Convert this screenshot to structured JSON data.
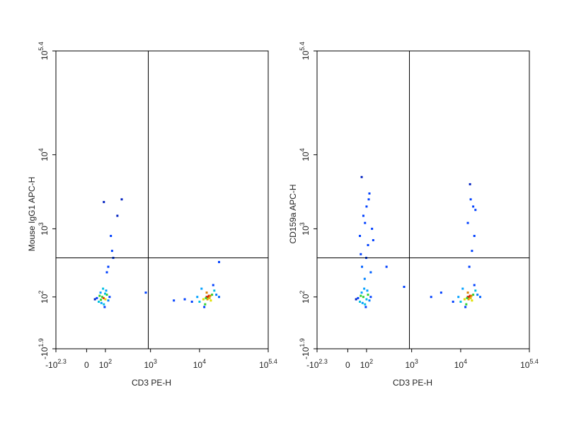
{
  "chart_data": [
    {
      "type": "scatter",
      "x_label": "CD3 PE-H",
      "y_label": "Mouse IgG1 APC-H",
      "xlim": [
        -199.5,
        251189
      ],
      "ylim": [
        -79.4,
        251189
      ],
      "xticks": [
        {
          "value": -199.5,
          "label": "-10",
          "sup": "2.3"
        },
        0,
        {
          "value": 100,
          "label": "10",
          "sup": "2"
        },
        {
          "value": 1000,
          "label": "10",
          "sup": "3"
        },
        {
          "value": 10000,
          "label": "10",
          "sup": "4"
        },
        {
          "value": 251189,
          "label": "10",
          "sup": "5.4"
        }
      ],
      "yticks": [
        {
          "value": -79.4,
          "label": "-10",
          "sup": "1.9"
        },
        {
          "value": 100,
          "label": "10",
          "sup": "2"
        },
        {
          "value": 1000,
          "label": "10",
          "sup": "3"
        },
        {
          "value": 10000,
          "label": "10",
          "sup": "4"
        },
        {
          "value": 251189,
          "label": "10",
          "sup": "5.4"
        }
      ],
      "quadrant": {
        "x": 900,
        "y": 400
      },
      "x": [
        60,
        80,
        100,
        70,
        90,
        110,
        50,
        120,
        85,
        95,
        75,
        65,
        105,
        130,
        40,
        88,
        72,
        98,
        12000,
        15000,
        18000,
        10000,
        14000,
        16000,
        20000,
        13000,
        17000,
        9000,
        22000,
        11000,
        15500,
        14500,
        7000,
        25000,
        19000,
        12500,
        14000,
        16500,
        13500,
        120,
        150,
        200,
        250,
        90,
        140,
        5000,
        3000,
        800,
        25000,
        160,
        110
      ],
      "y": [
        80,
        100,
        90,
        120,
        70,
        110,
        95,
        85,
        140,
        60,
        75,
        105,
        130,
        100,
        90,
        95,
        88,
        115,
        90,
        100,
        110,
        80,
        120,
        95,
        130,
        70,
        85,
        100,
        110,
        140,
        105,
        90,
        80,
        100,
        160,
        60,
        100,
        105,
        95,
        300,
        500,
        1500,
        2500,
        2300,
        800,
        90,
        85,
        120,
        350,
        400,
        250
      ],
      "colors": [
        "#00c0e0",
        "#30d030",
        "#e0e000",
        "#00a0ff",
        "#00c0e0",
        "#30d030",
        "#0040ff",
        "#0080ff",
        "#00c0e0",
        "#0040ff",
        "#00a0ff",
        "#30d030",
        "#00a0ff",
        "#0040ff",
        "#0020c0",
        "#e04000",
        "#30d030",
        "#00c0e0",
        "#e0e000",
        "#e03000",
        "#30d030",
        "#00c0e0",
        "#e08000",
        "#e0c000",
        "#00c0e0",
        "#30d030",
        "#e0e000",
        "#00a0ff",
        "#0080ff",
        "#00a0ff",
        "#e02000",
        "#e0a000",
        "#0040ff",
        "#0060ff",
        "#0040ff",
        "#0040ff",
        "#c02000",
        "#e08000",
        "#30d030",
        "#0040ff",
        "#0040ff",
        "#0020c0",
        "#0020c0",
        "#0020c0",
        "#0040ff",
        "#0040ff",
        "#0040ff",
        "#0040ff",
        "#0040ff",
        "#0040ff",
        "#0040ff"
      ]
    },
    {
      "type": "scatter",
      "x_label": "CD3 PE-H",
      "y_label": "CD159a APC-H",
      "xlim": [
        -199.5,
        251189
      ],
      "ylim": [
        -79.4,
        251189
      ],
      "xticks": [
        {
          "value": -199.5,
          "label": "-10",
          "sup": "2.3"
        },
        0,
        {
          "value": 100,
          "label": "10",
          "sup": "2"
        },
        {
          "value": 1000,
          "label": "10",
          "sup": "3"
        },
        {
          "value": 10000,
          "label": "10",
          "sup": "4"
        },
        {
          "value": 251189,
          "label": "10",
          "sup": "5.4"
        }
      ],
      "yticks": [
        {
          "value": -79.4,
          "label": "-10",
          "sup": "1.9"
        },
        {
          "value": 100,
          "label": "10",
          "sup": "2"
        },
        {
          "value": 1000,
          "label": "10",
          "sup": "3"
        },
        {
          "value": 10000,
          "label": "10",
          "sup": "4"
        },
        {
          "value": 251189,
          "label": "10",
          "sup": "5.4"
        }
      ],
      "quadrant": {
        "x": 900,
        "y": 400
      },
      "x": [
        60,
        80,
        100,
        70,
        90,
        110,
        50,
        120,
        85,
        95,
        75,
        65,
        105,
        130,
        40,
        88,
        72,
        98,
        110,
        60,
        140,
        80,
        100,
        120,
        70,
        150,
        90,
        130,
        65,
        115,
        12000,
        15000,
        18000,
        10000,
        14000,
        16000,
        20000,
        13000,
        17000,
        9000,
        22000,
        11000,
        15500,
        14500,
        7000,
        25000,
        19000,
        12500,
        14000,
        16500,
        13500,
        15000,
        17000,
        19000,
        14000,
        18000,
        16000,
        20000,
        15500,
        300,
        700,
        4000,
        2500
      ],
      "y": [
        80,
        100,
        90,
        120,
        70,
        110,
        95,
        85,
        140,
        60,
        75,
        105,
        130,
        100,
        90,
        200,
        300,
        400,
        600,
        800,
        1000,
        1500,
        2000,
        3000,
        5000,
        700,
        1200,
        250,
        450,
        2500,
        90,
        100,
        110,
        80,
        120,
        95,
        130,
        70,
        85,
        100,
        110,
        140,
        105,
        90,
        80,
        100,
        160,
        60,
        100,
        105,
        95,
        300,
        500,
        800,
        1200,
        2000,
        2500,
        1800,
        4000,
        300,
        150,
        120,
        100
      ],
      "colors": [
        "#00c0e0",
        "#30d030",
        "#00c0e0",
        "#00a0ff",
        "#00c0e0",
        "#30d030",
        "#0040ff",
        "#0080ff",
        "#00a0ff",
        "#0040ff",
        "#00a0ff",
        "#30d030",
        "#00a0ff",
        "#0040ff",
        "#0020c0",
        "#0080ff",
        "#0060ff",
        "#0040ff",
        "#0040ff",
        "#0040ff",
        "#0040ff",
        "#0040ff",
        "#0040ff",
        "#0040ff",
        "#0020c0",
        "#0040ff",
        "#0040ff",
        "#0060ff",
        "#0040ff",
        "#0040ff",
        "#e0e000",
        "#e03000",
        "#30d030",
        "#00c0e0",
        "#e08000",
        "#e0c000",
        "#00c0e0",
        "#30d030",
        "#e0e000",
        "#00a0ff",
        "#0080ff",
        "#00a0ff",
        "#e02000",
        "#e0a000",
        "#0040ff",
        "#0060ff",
        "#0040ff",
        "#0040ff",
        "#c02000",
        "#e08000",
        "#30d030",
        "#0040ff",
        "#0040ff",
        "#0040ff",
        "#0040ff",
        "#0040ff",
        "#0040ff",
        "#0040ff",
        "#0020c0",
        "#0040ff",
        "#0040ff",
        "#0040ff",
        "#0040ff"
      ]
    }
  ]
}
